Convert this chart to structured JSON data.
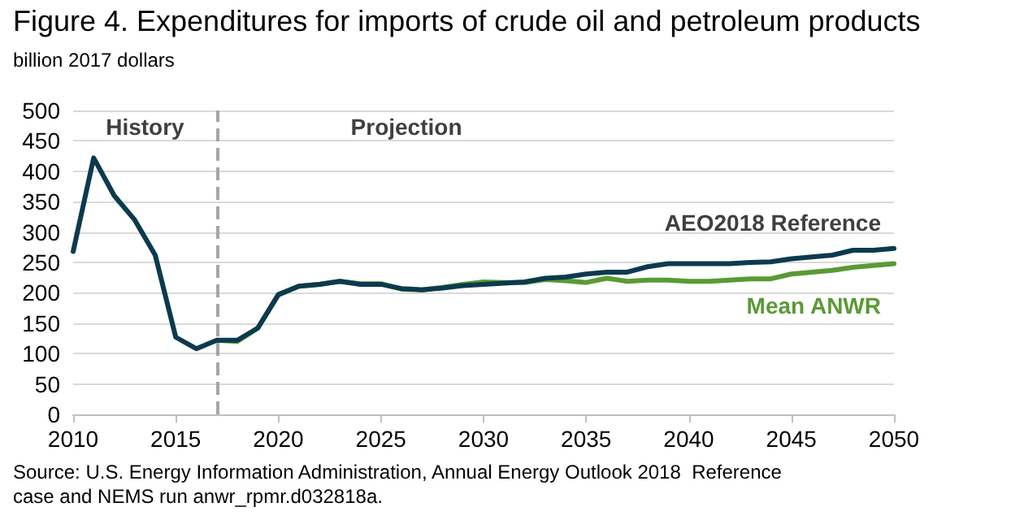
{
  "chart_data": {
    "type": "line",
    "title": "Figure 4. Expenditures for imports of crude oil and petroleum products",
    "ylabel": "billion 2017 dollars",
    "x": [
      2010,
      2011,
      2012,
      2013,
      2014,
      2015,
      2016,
      2017,
      2018,
      2019,
      2020,
      2021,
      2022,
      2023,
      2024,
      2025,
      2026,
      2027,
      2028,
      2029,
      2030,
      2031,
      2032,
      2033,
      2034,
      2035,
      2036,
      2037,
      2038,
      2039,
      2040,
      2041,
      2042,
      2043,
      2044,
      2045,
      2046,
      2047,
      2048,
      2049,
      2050
    ],
    "series": [
      {
        "name": "Mean ANWR",
        "color": "#5a9a35",
        "values": [
          null,
          null,
          null,
          null,
          null,
          null,
          null,
          122,
          120,
          142,
          197,
          211,
          214,
          219,
          215,
          215,
          206,
          205,
          209,
          214,
          218,
          217,
          217,
          222,
          220,
          217,
          224,
          219,
          221,
          221,
          219,
          219,
          221,
          223,
          223,
          231,
          234,
          237,
          242,
          245,
          248
        ]
      },
      {
        "name": "AEO2018 Reference",
        "color": "#0c3a4e",
        "values": [
          268,
          422,
          360,
          320,
          262,
          127,
          108,
          122,
          122,
          142,
          197,
          211,
          214,
          219,
          214,
          214,
          207,
          205,
          208,
          212,
          214,
          216,
          218,
          224,
          226,
          231,
          234,
          234,
          243,
          248,
          248,
          248,
          248,
          250,
          251,
          256,
          259,
          262,
          270,
          270,
          273
        ]
      }
    ],
    "xlim": [
      2010,
      2050
    ],
    "xticks": [
      2010,
      2015,
      2020,
      2025,
      2030,
      2035,
      2040,
      2045,
      2050
    ],
    "ylim": [
      0,
      500
    ],
    "yticks": [
      0,
      50,
      100,
      150,
      200,
      250,
      300,
      350,
      400,
      450,
      500
    ],
    "grid": "y",
    "legend": false,
    "marker": "none",
    "line_style": "solid",
    "ref_lines": [
      {
        "axis": "x",
        "value": 2017,
        "color": "#a6a6a6",
        "line_style": "dashed"
      }
    ],
    "annotations": [
      "History",
      "Projection",
      "Source: U.S. Energy Information Administration, Annual Energy Outlook 2018  Reference case and NEMS run anwr_rpmr.d032818a."
    ]
  }
}
